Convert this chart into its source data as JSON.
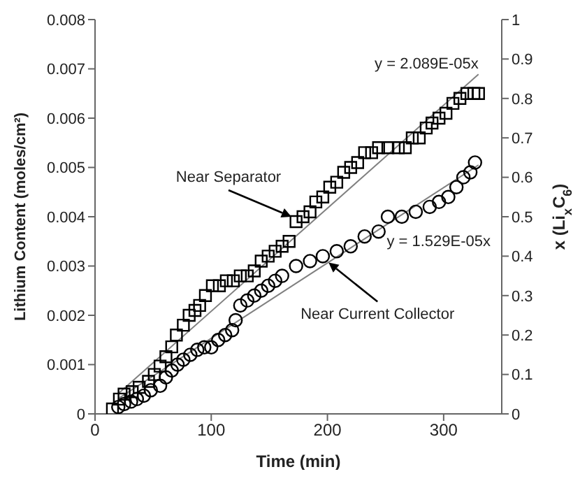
{
  "chart_data": {
    "type": "scatter",
    "xlabel": "Time (min)",
    "ylabel": "Lithium Content (moles/cm²)",
    "y2label": "x (Li$_{x}$C$_{6}$)",
    "xlim": [
      0,
      350
    ],
    "xticks": [
      0,
      100,
      200,
      300
    ],
    "ylim": [
      0,
      0.008
    ],
    "yticks": [
      0,
      0.001,
      0.002,
      0.003,
      0.004,
      0.005,
      0.006,
      0.007,
      0.008
    ],
    "y2lim": [
      0,
      1
    ],
    "y2ticks": [
      0,
      0.1,
      0.2,
      0.3,
      0.4,
      0.5,
      0.6,
      0.7,
      0.8,
      0.9,
      1
    ],
    "grid": false,
    "series": [
      {
        "marker": "square",
        "color": "#000000",
        "x": [
          15,
          21,
          25,
          32,
          38,
          46,
          51,
          56,
          61,
          66,
          70,
          76,
          81,
          86,
          90,
          95,
          101,
          107,
          113,
          119,
          125,
          131,
          137,
          143,
          149,
          155,
          161,
          167,
          173,
          179,
          185,
          190,
          196,
          202,
          208,
          214,
          220,
          226,
          232,
          238,
          244,
          252,
          261,
          267,
          273,
          279,
          285,
          290,
          296,
          302,
          308,
          314,
          320,
          326,
          330
        ],
        "values": [
          0.0001,
          0.0003,
          0.0004,
          0.00045,
          0.00054,
          0.00066,
          0.0008,
          0.00097,
          0.00116,
          0.00136,
          0.0016,
          0.0018,
          0.002,
          0.0021,
          0.0022,
          0.0024,
          0.0026,
          0.0026,
          0.0027,
          0.0027,
          0.0028,
          0.0028,
          0.0029,
          0.0031,
          0.0032,
          0.0033,
          0.0034,
          0.0035,
          0.0039,
          0.004,
          0.0041,
          0.0043,
          0.0044,
          0.0046,
          0.0047,
          0.0049,
          0.005,
          0.0051,
          0.0053,
          0.0053,
          0.0054,
          0.0054,
          0.0054,
          0.0054,
          0.0056,
          0.0056,
          0.0058,
          0.0059,
          0.006,
          0.0061,
          0.0063,
          0.0064,
          0.0065,
          0.0065,
          0.0065
        ]
      },
      {
        "marker": "circle",
        "color": "#000000",
        "x": [
          20,
          25,
          31,
          36,
          42,
          48,
          56,
          61,
          66,
          71,
          76,
          82,
          88,
          94,
          100,
          106,
          112,
          118,
          121,
          125,
          131,
          137,
          143,
          149,
          155,
          161,
          173,
          185,
          196,
          208,
          220,
          232,
          244,
          252,
          264,
          276,
          288,
          296,
          304,
          311,
          317,
          323,
          327
        ],
        "values": [
          0.00014,
          0.0002,
          0.00025,
          0.0003,
          0.00037,
          0.00048,
          0.00057,
          0.00074,
          0.00088,
          0.001,
          0.0011,
          0.0012,
          0.0013,
          0.00135,
          0.00135,
          0.0015,
          0.0016,
          0.0017,
          0.0019,
          0.0022,
          0.0023,
          0.0024,
          0.0025,
          0.0026,
          0.0027,
          0.0028,
          0.003,
          0.0031,
          0.0032,
          0.0033,
          0.0034,
          0.0036,
          0.0037,
          0.004,
          0.004,
          0.0041,
          0.0042,
          0.0043,
          0.0044,
          0.0046,
          0.0048,
          0.0049,
          0.0051
        ]
      },
      {
        "type": "line",
        "marker": "none",
        "color": "#808080",
        "x": [
          20,
          330
        ],
        "values": [
          0.00041,
          0.00689
        ]
      },
      {
        "type": "line",
        "marker": "none",
        "color": "#808080",
        "x": [
          20,
          330
        ],
        "values": [
          0.00031,
          0.00505
        ]
      }
    ],
    "annotations": [
      {
        "text": "Near Separator",
        "x": 169,
        "y": 0.004
      },
      {
        "text": "Near Current Collector",
        "x": 201,
        "y": 0.00307
      },
      {
        "text": "y = 2.089E-05x",
        "x": 330,
        "y": 0.00689
      },
      "y = 1.529E-05x"
    ]
  }
}
